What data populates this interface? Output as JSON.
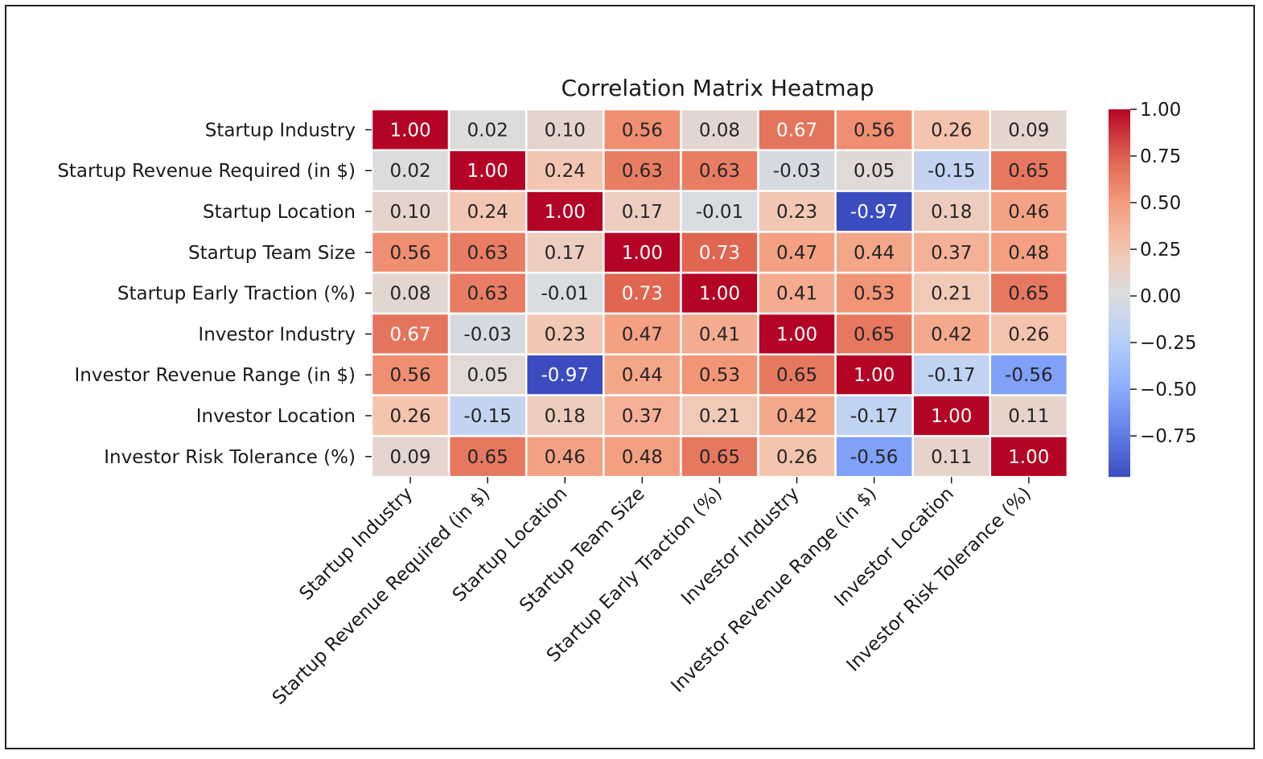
{
  "chart_data": {
    "type": "heatmap",
    "title": "Correlation Matrix Heatmap",
    "labels": [
      "Startup Industry",
      "Startup Revenue Required (in $)",
      "Startup Location",
      "Startup Team Size",
      "Startup Early Traction (%)",
      "Investor Industry",
      "Investor Revenue Range (in $)",
      "Investor Location",
      "Investor Risk Tolerance (%)"
    ],
    "values": [
      [
        1.0,
        0.02,
        0.1,
        0.56,
        0.08,
        0.67,
        0.56,
        0.26,
        0.09
      ],
      [
        0.02,
        1.0,
        0.24,
        0.63,
        0.63,
        -0.03,
        0.05,
        -0.15,
        0.65
      ],
      [
        0.1,
        0.24,
        1.0,
        0.17,
        -0.01,
        0.23,
        -0.97,
        0.18,
        0.46
      ],
      [
        0.56,
        0.63,
        0.17,
        1.0,
        0.73,
        0.47,
        0.44,
        0.37,
        0.48
      ],
      [
        0.08,
        0.63,
        -0.01,
        0.73,
        1.0,
        0.41,
        0.53,
        0.21,
        0.65
      ],
      [
        0.67,
        -0.03,
        0.23,
        0.47,
        0.41,
        1.0,
        0.65,
        0.42,
        0.26
      ],
      [
        0.56,
        0.05,
        -0.97,
        0.44,
        0.53,
        0.65,
        1.0,
        -0.17,
        -0.56
      ],
      [
        0.26,
        -0.15,
        0.18,
        0.37,
        0.21,
        0.42,
        -0.17,
        1.0,
        0.11
      ],
      [
        0.09,
        0.65,
        0.46,
        0.48,
        0.65,
        0.26,
        -0.56,
        0.11,
        1.0
      ]
    ],
    "value_format": "0.00",
    "colormap": "coolwarm",
    "color_range": [
      -0.97,
      1.0
    ],
    "colorbar_ticks": [
      "1.00",
      "0.75",
      "0.50",
      "0.25",
      "0.00",
      "−0.25",
      "−0.50",
      "−0.75"
    ],
    "colorbar_tick_values": [
      1.0,
      0.75,
      0.5,
      0.25,
      0.0,
      -0.25,
      -0.5,
      -0.75
    ],
    "x_tick_rotation_deg": 45,
    "cell_border_color": "#ffffff"
  }
}
